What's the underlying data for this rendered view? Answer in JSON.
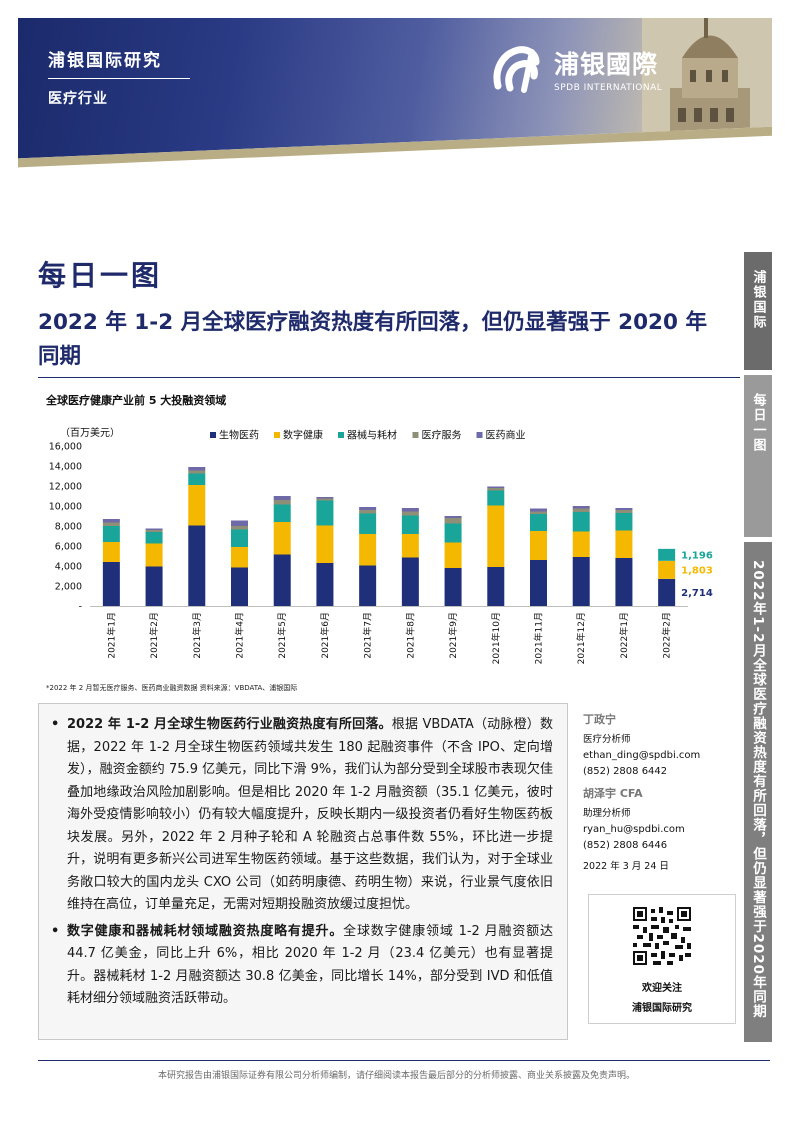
{
  "header": {
    "firm": "浦银国际研究",
    "sector": "医疗行业",
    "logo_cn": "浦银國際",
    "logo_en": "SPDB INTERNATIONAL"
  },
  "side_tabs": [
    "浦银国际",
    "每日一图",
    "2022年1-2月全球医疗融资热度有所回落，但仍显著强于2020年同期"
  ],
  "page_title": "每日一图",
  "headline": "2022 年 1-2 月全球医疗融资热度有所回落，但仍显著强于 2020 年同期",
  "chart_title": "全球医疗健康产业前 5 大投融资领域",
  "chart_data": {
    "type": "bar",
    "stacked": true,
    "unit_label": "（百万美元）",
    "categories": [
      "2021年1月",
      "2021年2月",
      "2021年3月",
      "2021年4月",
      "2021年5月",
      "2021年6月",
      "2021年7月",
      "2021年8月",
      "2021年9月",
      "2021年10月",
      "2021年11月",
      "2021年12月",
      "2022年1月",
      "2022年2月"
    ],
    "series": [
      {
        "name": "生物医药",
        "color": "#1f2f7a",
        "values": [
          4400,
          3950,
          8050,
          3850,
          5150,
          4300,
          4050,
          4850,
          3800,
          3900,
          4600,
          4900,
          4800,
          2714
        ]
      },
      {
        "name": "数字健康",
        "color": "#f5b800",
        "values": [
          2000,
          2300,
          4050,
          2050,
          3250,
          3750,
          3150,
          2350,
          2550,
          6150,
          2900,
          2550,
          2750,
          1803
        ]
      },
      {
        "name": "器械与耗材",
        "color": "#1aa59a",
        "values": [
          1600,
          1150,
          1150,
          1750,
          1750,
          2500,
          2050,
          1850,
          1900,
          1500,
          1700,
          1950,
          1750,
          1196
        ]
      },
      {
        "name": "医疗服务",
        "color": "#8f8f78",
        "values": [
          350,
          200,
          300,
          350,
          450,
          200,
          350,
          400,
          550,
          250,
          250,
          350,
          300,
          0
        ]
      },
      {
        "name": "医药商业",
        "color": "#6e6aa8",
        "values": [
          350,
          150,
          350,
          550,
          400,
          150,
          300,
          350,
          200,
          150,
          300,
          250,
          200,
          0
        ]
      }
    ],
    "ylim": [
      0,
      16000
    ],
    "yticks": [
      "-",
      "2,000",
      "4,000",
      "6,000",
      "8,000",
      "10,000",
      "12,000",
      "14,000",
      "16,000"
    ],
    "data_labels": [
      "2,714",
      "1,803",
      "1,196"
    ],
    "data_label_colors": [
      "#1f2f7a",
      "#f5b800",
      "#1aa59a"
    ],
    "legend": "top"
  },
  "chart_note": "*2022 年 2 月暂无医疗服务、医药商业融资数据   资料来源：VBDATA、浦银国际",
  "bullets": [
    {
      "lead": "2022 年 1-2 月全球生物医药行业融资热度有所回落。",
      "text": "根据 VBDATA（动脉橙）数据，2022 年 1-2 月全球生物医药领域共发生 180 起融资事件（不含 IPO、定向增发），融资金额约 75.9 亿美元，同比下滑 9%，我们认为部分受到全球股市表现欠佳叠加地缘政治风险加剧影响。但是相比 2020 年 1-2 月融资额（35.1 亿美元，彼时海外受疫情影响较小）仍有较大幅度提升，反映长期内一级投资者仍看好生物医药板块发展。另外，2022 年 2 月种子轮和 A 轮融资占总事件数 55%，环比进一步提升，说明有更多新兴公司进军生物医药领域。基于这些数据，我们认为，对于全球业务敞口较大的国内龙头 CXO 公司（如药明康德、药明生物）来说，行业景气度依旧维持在高位，订单量充足，无需对短期投融资放缓过度担忧。"
    },
    {
      "lead": "数字健康和器械耗材领域融资热度略有提升。",
      "text": "全球数字健康领域 1-2 月融资额达 44.7 亿美金，同比上升 6%，相比 2020 年 1-2 月（23.4 亿美元）也有显著提升。器械耗材 1-2 月融资额达 30.8 亿美金，同比增长 14%，部分受到 IVD 和低值耗材细分领域融资活跃带动。"
    }
  ],
  "analysts": [
    {
      "name": "丁政宁",
      "role": "医疗分析师",
      "email": "ethan_ding@spdbi.com",
      "phone": "(852) 2808 6442"
    },
    {
      "name": "胡泽宇 CFA",
      "role": "助理分析师",
      "email": "ryan_hu@spdbi.com",
      "phone": "(852) 2808 6446"
    }
  ],
  "date": "2022 年 3 月 24 日",
  "qr": {
    "line1": "欢迎关注",
    "line2": "浦银国际研究"
  },
  "footer": "本研究报告由浦银国际证券有限公司分析师编制，请仔细阅读本报告最后部分的分析师披露、商业关系披露及免责声明。"
}
